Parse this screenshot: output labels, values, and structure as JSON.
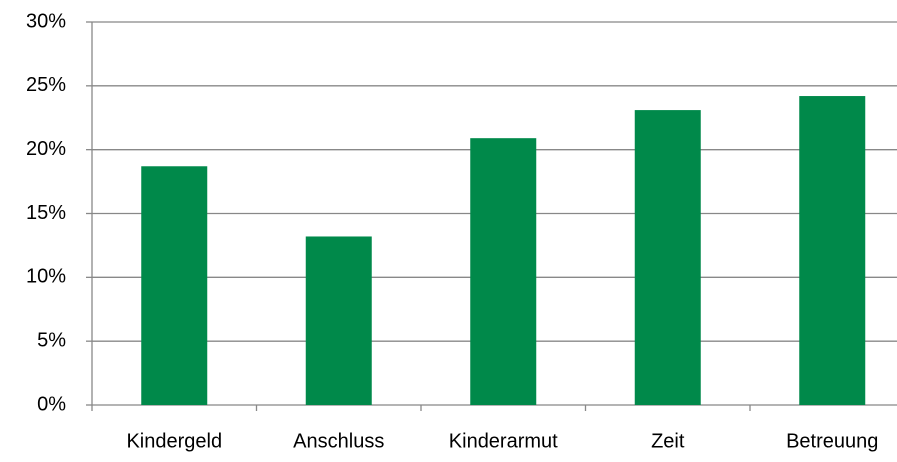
{
  "chart_data": {
    "type": "bar",
    "categories": [
      "Kindergeld",
      "Anschluss",
      "Kinderarmut",
      "Zeit",
      "Betreuung"
    ],
    "values": [
      18.7,
      13.2,
      20.9,
      23.1,
      24.2
    ],
    "color": "#00894a",
    "ylim": [
      0,
      30
    ],
    "yticks": [
      {
        "value": 0,
        "label": "0%"
      },
      {
        "value": 5,
        "label": "5%"
      },
      {
        "value": 10,
        "label": "10%"
      },
      {
        "value": 15,
        "label": "15%"
      },
      {
        "value": 20,
        "label": "20%"
      },
      {
        "value": 25,
        "label": "25%"
      },
      {
        "value": 30,
        "label": "30%"
      }
    ],
    "grid": true
  }
}
